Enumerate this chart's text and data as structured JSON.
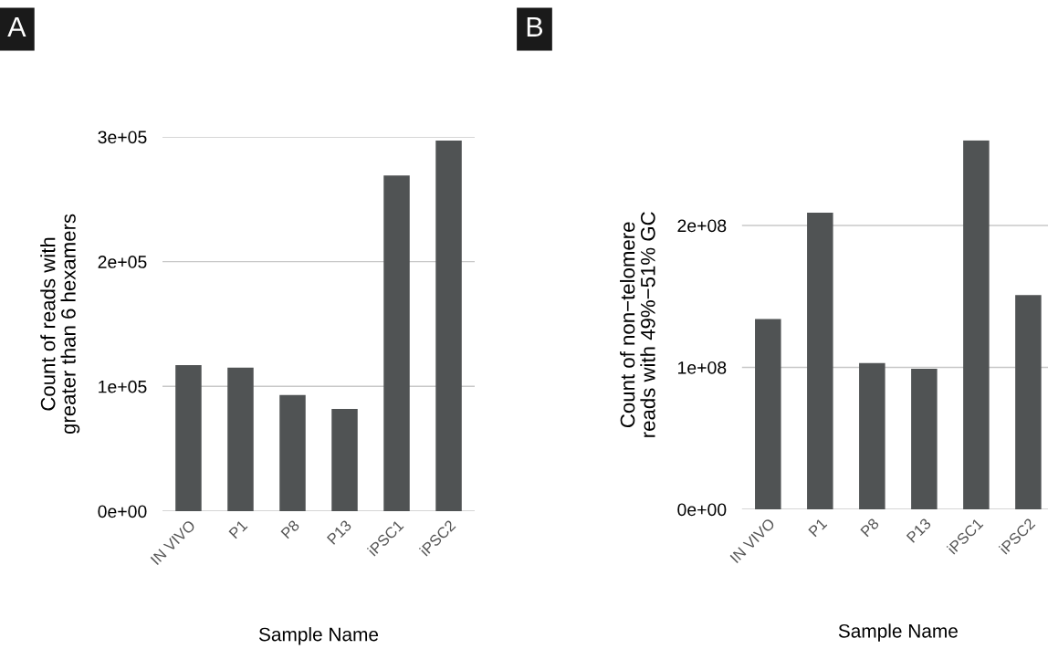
{
  "chart_data": [
    {
      "type": "bar",
      "title": "A",
      "xlabel": "Sample Name",
      "ylabel": "Count of reads with\ngreater than 6 hexamers",
      "categories": [
        "IN VIVO",
        "P1",
        "P8",
        "P13",
        "iPSC1",
        "iPSC2"
      ],
      "values": [
        117000,
        115000,
        93000,
        82000,
        269000,
        297000
      ],
      "color": "#505354",
      "ylim": [
        0,
        300000
      ],
      "yticks": [
        {
          "value": 0,
          "label": "0e+00"
        },
        {
          "value": 100000,
          "label": "1e+05"
        },
        {
          "value": 200000,
          "label": "2e+05"
        },
        {
          "value": 300000,
          "label": "3e+05"
        }
      ],
      "grid": "y",
      "legend": false
    },
    {
      "type": "bar",
      "title": "B",
      "xlabel": "Sample Name",
      "ylabel": "Count of non−telomere\nreads with 49%−51% GC",
      "categories": [
        "IN VIVO",
        "P1",
        "P8",
        "P13",
        "iPSC1",
        "iPSC2"
      ],
      "values": [
        134000000,
        209000000,
        103000000,
        99000000,
        260000000,
        151000000
      ],
      "color": "#505354",
      "ylim": [
        0,
        260000000
      ],
      "yticks": [
        {
          "value": 0,
          "label": "0e+00"
        },
        {
          "value": 100000000,
          "label": "1e+08"
        },
        {
          "value": 200000000,
          "label": "2e+08"
        }
      ],
      "grid": "y",
      "legend": false
    }
  ]
}
